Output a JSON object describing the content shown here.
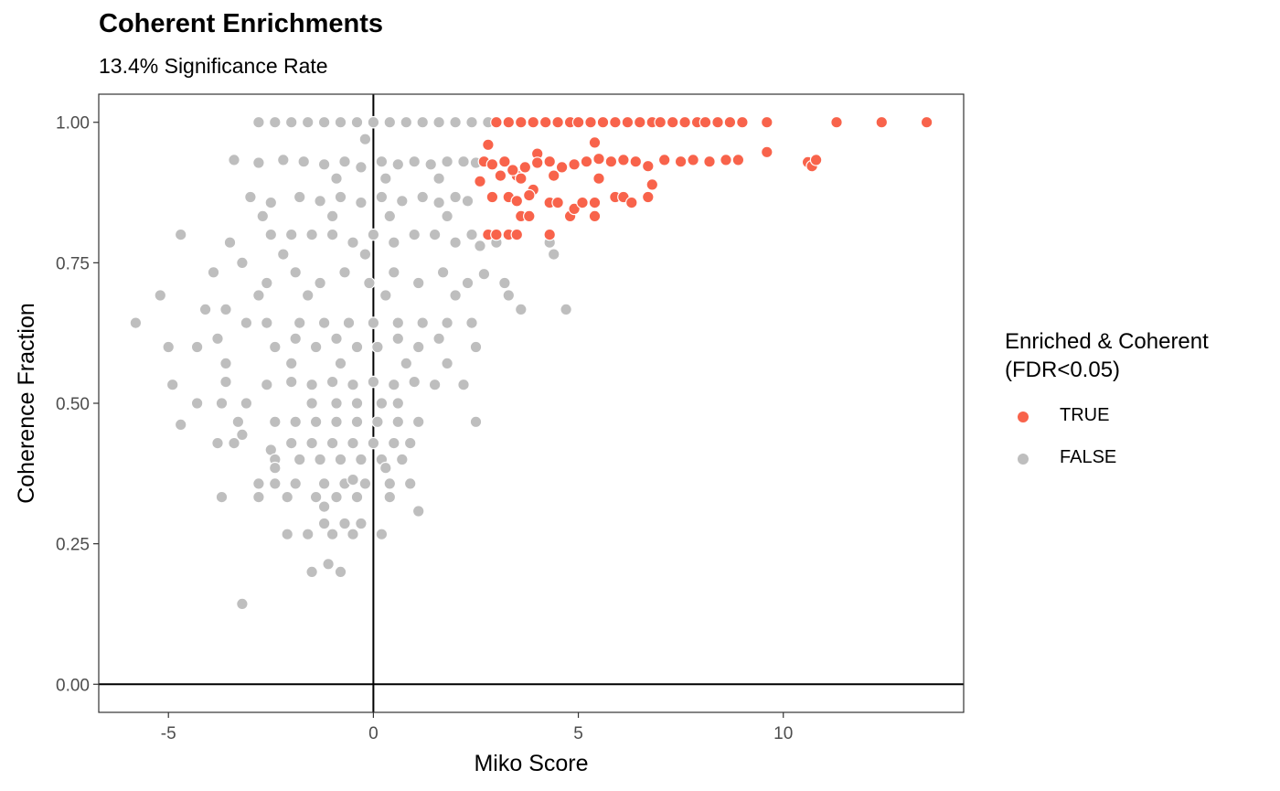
{
  "title": "Coherent Enrichments",
  "subtitle": "13.4% Significance Rate",
  "legend": {
    "title_line1": "Enriched & Coherent",
    "title_line2": "(FDR<0.05)",
    "items": [
      {
        "label": "TRUE",
        "color": "#F8634B"
      },
      {
        "label": "FALSE",
        "color": "#BEBEBE"
      }
    ]
  },
  "chart_data": {
    "type": "scatter",
    "xlabel": "Miko Score",
    "ylabel": "Coherence Fraction",
    "xlim": [
      -6.7,
      14.4
    ],
    "ylim": [
      -0.05,
      1.05
    ],
    "x_ticks": [
      -5,
      0,
      5,
      10
    ],
    "x_tick_labels": [
      "-5",
      "0",
      "5",
      "10"
    ],
    "y_ticks": [
      0,
      0.25,
      0.5,
      0.75,
      1.0
    ],
    "y_tick_labels": [
      "0.00",
      "0.25",
      "0.50",
      "0.75",
      "1.00"
    ],
    "reference_lines": {
      "x": 0,
      "y": 0
    },
    "grid": false,
    "colors": {
      "TRUE": "#F8634B",
      "FALSE": "#BEBEBE"
    },
    "series": [
      {
        "name": "TRUE",
        "color": "#F8634B",
        "points": [
          [
            3.0,
            1.0
          ],
          [
            3.3,
            1.0
          ],
          [
            3.6,
            1.0
          ],
          [
            3.9,
            1.0
          ],
          [
            4.2,
            1.0
          ],
          [
            4.5,
            1.0
          ],
          [
            4.8,
            1.0
          ],
          [
            5.0,
            1.0
          ],
          [
            5.3,
            1.0
          ],
          [
            5.6,
            1.0
          ],
          [
            5.9,
            1.0
          ],
          [
            6.2,
            1.0
          ],
          [
            6.5,
            1.0
          ],
          [
            6.8,
            1.0
          ],
          [
            7.0,
            1.0
          ],
          [
            7.3,
            1.0
          ],
          [
            7.6,
            1.0
          ],
          [
            7.9,
            1.0
          ],
          [
            8.1,
            1.0
          ],
          [
            8.4,
            1.0
          ],
          [
            8.7,
            1.0
          ],
          [
            9.0,
            1.0
          ],
          [
            9.6,
            1.0
          ],
          [
            11.3,
            1.0
          ],
          [
            12.4,
            1.0
          ],
          [
            13.5,
            1.0
          ],
          [
            2.8,
            0.96
          ],
          [
            5.4,
            0.964
          ],
          [
            9.6,
            0.947
          ],
          [
            3.5,
            0.905
          ],
          [
            4.0,
            0.944
          ],
          [
            2.7,
            0.93
          ],
          [
            2.9,
            0.925
          ],
          [
            3.2,
            0.93
          ],
          [
            3.4,
            0.915
          ],
          [
            3.7,
            0.92
          ],
          [
            4.0,
            0.928
          ],
          [
            4.3,
            0.93
          ],
          [
            4.6,
            0.92
          ],
          [
            4.9,
            0.925
          ],
          [
            5.2,
            0.93
          ],
          [
            5.5,
            0.935
          ],
          [
            5.8,
            0.93
          ],
          [
            6.1,
            0.933
          ],
          [
            6.4,
            0.93
          ],
          [
            6.7,
            0.922
          ],
          [
            7.1,
            0.933
          ],
          [
            7.5,
            0.93
          ],
          [
            7.8,
            0.933
          ],
          [
            8.2,
            0.93
          ],
          [
            8.6,
            0.933
          ],
          [
            8.9,
            0.933
          ],
          [
            10.6,
            0.929
          ],
          [
            10.7,
            0.922
          ],
          [
            10.8,
            0.933
          ],
          [
            2.6,
            0.895
          ],
          [
            3.1,
            0.905
          ],
          [
            3.6,
            0.9
          ],
          [
            3.9,
            0.88
          ],
          [
            4.4,
            0.905
          ],
          [
            3.3,
            0.867
          ],
          [
            3.5,
            0.86
          ],
          [
            3.8,
            0.87
          ],
          [
            4.3,
            0.857
          ],
          [
            4.5,
            0.857
          ],
          [
            2.9,
            0.867
          ],
          [
            3.6,
            0.833
          ],
          [
            3.8,
            0.833
          ],
          [
            4.8,
            0.833
          ],
          [
            4.9,
            0.846
          ],
          [
            5.1,
            0.857
          ],
          [
            5.4,
            0.857
          ],
          [
            5.4,
            0.833
          ],
          [
            5.5,
            0.9
          ],
          [
            5.9,
            0.867
          ],
          [
            6.1,
            0.867
          ],
          [
            6.3,
            0.857
          ],
          [
            6.7,
            0.867
          ],
          [
            6.8,
            0.889
          ],
          [
            2.8,
            0.8
          ],
          [
            3.0,
            0.8
          ],
          [
            3.3,
            0.8
          ],
          [
            3.5,
            0.8
          ],
          [
            4.3,
            0.8
          ]
        ]
      },
      {
        "name": "FALSE",
        "color": "#BEBEBE",
        "points": [
          [
            -2.8,
            1.0
          ],
          [
            -2.4,
            1.0
          ],
          [
            -2.0,
            1.0
          ],
          [
            -1.6,
            1.0
          ],
          [
            -1.2,
            1.0
          ],
          [
            -0.8,
            1.0
          ],
          [
            -0.4,
            1.0
          ],
          [
            0.0,
            1.0
          ],
          [
            0.4,
            1.0
          ],
          [
            0.8,
            1.0
          ],
          [
            1.2,
            1.0
          ],
          [
            1.6,
            1.0
          ],
          [
            2.0,
            1.0
          ],
          [
            2.4,
            1.0
          ],
          [
            2.8,
            1.0
          ],
          [
            -0.2,
            0.97
          ],
          [
            -3.4,
            0.933
          ],
          [
            -2.8,
            0.928
          ],
          [
            -2.2,
            0.933
          ],
          [
            -1.7,
            0.93
          ],
          [
            -1.2,
            0.925
          ],
          [
            -0.7,
            0.93
          ],
          [
            -0.3,
            0.92
          ],
          [
            0.2,
            0.93
          ],
          [
            0.6,
            0.925
          ],
          [
            1.0,
            0.93
          ],
          [
            1.4,
            0.925
          ],
          [
            1.8,
            0.93
          ],
          [
            2.2,
            0.93
          ],
          [
            2.5,
            0.928
          ],
          [
            -0.9,
            0.9
          ],
          [
            0.3,
            0.9
          ],
          [
            1.6,
            0.9
          ],
          [
            -3.0,
            0.867
          ],
          [
            -2.5,
            0.857
          ],
          [
            -1.8,
            0.867
          ],
          [
            -1.3,
            0.86
          ],
          [
            -0.8,
            0.867
          ],
          [
            -0.3,
            0.857
          ],
          [
            0.2,
            0.867
          ],
          [
            0.7,
            0.86
          ],
          [
            1.2,
            0.867
          ],
          [
            1.6,
            0.857
          ],
          [
            2.0,
            0.867
          ],
          [
            2.3,
            0.86
          ],
          [
            -1.0,
            0.833
          ],
          [
            0.4,
            0.833
          ],
          [
            1.8,
            0.833
          ],
          [
            -2.7,
            0.833
          ],
          [
            -4.7,
            0.8
          ],
          [
            -3.5,
            0.786
          ],
          [
            -2.5,
            0.8
          ],
          [
            -2.0,
            0.8
          ],
          [
            -1.5,
            0.8
          ],
          [
            -1.0,
            0.8
          ],
          [
            -0.5,
            0.786
          ],
          [
            0.0,
            0.8
          ],
          [
            0.5,
            0.786
          ],
          [
            1.0,
            0.8
          ],
          [
            1.5,
            0.8
          ],
          [
            2.0,
            0.786
          ],
          [
            2.4,
            0.8
          ],
          [
            2.6,
            0.78
          ],
          [
            3.0,
            0.786
          ],
          [
            4.3,
            0.786
          ],
          [
            4.4,
            0.765
          ],
          [
            -2.2,
            0.765
          ],
          [
            -0.2,
            0.765
          ],
          [
            -3.9,
            0.733
          ],
          [
            -3.2,
            0.75
          ],
          [
            -2.6,
            0.714
          ],
          [
            -1.9,
            0.733
          ],
          [
            -1.3,
            0.714
          ],
          [
            -0.7,
            0.733
          ],
          [
            -0.1,
            0.714
          ],
          [
            0.5,
            0.733
          ],
          [
            1.1,
            0.714
          ],
          [
            1.7,
            0.733
          ],
          [
            2.3,
            0.714
          ],
          [
            2.7,
            0.73
          ],
          [
            3.2,
            0.714
          ],
          [
            -5.2,
            0.692
          ],
          [
            -2.8,
            0.692
          ],
          [
            -1.6,
            0.692
          ],
          [
            0.3,
            0.692
          ],
          [
            2.0,
            0.692
          ],
          [
            3.3,
            0.692
          ],
          [
            -4.1,
            0.667
          ],
          [
            -3.6,
            0.667
          ],
          [
            -2.6,
            0.643
          ],
          [
            -1.8,
            0.643
          ],
          [
            -1.2,
            0.643
          ],
          [
            -0.6,
            0.643
          ],
          [
            0.0,
            0.643
          ],
          [
            0.6,
            0.643
          ],
          [
            1.2,
            0.643
          ],
          [
            1.8,
            0.643
          ],
          [
            2.4,
            0.643
          ],
          [
            3.6,
            0.667
          ],
          [
            4.7,
            0.667
          ],
          [
            -5.8,
            0.643
          ],
          [
            -3.1,
            0.643
          ],
          [
            -5.0,
            0.6
          ],
          [
            -4.3,
            0.6
          ],
          [
            -3.8,
            0.615
          ],
          [
            -2.4,
            0.6
          ],
          [
            -1.9,
            0.615
          ],
          [
            -1.4,
            0.6
          ],
          [
            -0.9,
            0.615
          ],
          [
            -0.4,
            0.6
          ],
          [
            0.1,
            0.6
          ],
          [
            0.6,
            0.615
          ],
          [
            1.1,
            0.6
          ],
          [
            1.6,
            0.615
          ],
          [
            2.5,
            0.6
          ],
          [
            -3.6,
            0.571
          ],
          [
            -2.0,
            0.571
          ],
          [
            -0.8,
            0.571
          ],
          [
            0.8,
            0.571
          ],
          [
            1.8,
            0.571
          ],
          [
            -4.9,
            0.533
          ],
          [
            -3.6,
            0.538
          ],
          [
            -2.6,
            0.533
          ],
          [
            -2.0,
            0.538
          ],
          [
            -1.5,
            0.533
          ],
          [
            -1.0,
            0.538
          ],
          [
            -0.5,
            0.533
          ],
          [
            0.0,
            0.538
          ],
          [
            0.5,
            0.533
          ],
          [
            1.0,
            0.538
          ],
          [
            1.5,
            0.533
          ],
          [
            2.2,
            0.533
          ],
          [
            -4.3,
            0.5
          ],
          [
            -3.7,
            0.5
          ],
          [
            -3.1,
            0.5
          ],
          [
            -1.5,
            0.5
          ],
          [
            -0.9,
            0.5
          ],
          [
            -0.4,
            0.5
          ],
          [
            0.2,
            0.5
          ],
          [
            0.6,
            0.5
          ],
          [
            -4.7,
            0.462
          ],
          [
            -3.3,
            0.467
          ],
          [
            -3.2,
            0.444
          ],
          [
            -2.4,
            0.467
          ],
          [
            -1.9,
            0.467
          ],
          [
            -1.4,
            0.467
          ],
          [
            -0.9,
            0.467
          ],
          [
            -0.4,
            0.467
          ],
          [
            0.1,
            0.467
          ],
          [
            0.6,
            0.467
          ],
          [
            1.1,
            0.467
          ],
          [
            2.5,
            0.467
          ],
          [
            -3.8,
            0.429
          ],
          [
            -3.4,
            0.429
          ],
          [
            -2.5,
            0.417
          ],
          [
            -2.0,
            0.429
          ],
          [
            -1.5,
            0.429
          ],
          [
            -1.0,
            0.429
          ],
          [
            -0.5,
            0.429
          ],
          [
            0.0,
            0.429
          ],
          [
            0.5,
            0.429
          ],
          [
            0.9,
            0.429
          ],
          [
            -2.4,
            0.4
          ],
          [
            -1.8,
            0.4
          ],
          [
            -1.3,
            0.4
          ],
          [
            -0.8,
            0.4
          ],
          [
            -0.3,
            0.4
          ],
          [
            0.2,
            0.4
          ],
          [
            0.7,
            0.4
          ],
          [
            -2.4,
            0.385
          ],
          [
            0.3,
            0.385
          ],
          [
            -2.8,
            0.357
          ],
          [
            -2.4,
            0.357
          ],
          [
            -1.9,
            0.357
          ],
          [
            -1.2,
            0.357
          ],
          [
            -0.7,
            0.357
          ],
          [
            -0.2,
            0.357
          ],
          [
            0.4,
            0.357
          ],
          [
            0.9,
            0.357
          ],
          [
            -0.5,
            0.364
          ],
          [
            -3.7,
            0.333
          ],
          [
            -2.8,
            0.333
          ],
          [
            -2.1,
            0.333
          ],
          [
            -1.4,
            0.333
          ],
          [
            -0.9,
            0.333
          ],
          [
            -0.4,
            0.333
          ],
          [
            0.4,
            0.333
          ],
          [
            -1.2,
            0.316
          ],
          [
            1.1,
            0.308
          ],
          [
            -1.2,
            0.286
          ],
          [
            -0.7,
            0.286
          ],
          [
            -0.3,
            0.286
          ],
          [
            -2.1,
            0.267
          ],
          [
            -1.6,
            0.267
          ],
          [
            -1.0,
            0.267
          ],
          [
            -0.5,
            0.267
          ],
          [
            0.2,
            0.267
          ],
          [
            -1.5,
            0.2
          ],
          [
            -1.1,
            0.214
          ],
          [
            -0.8,
            0.2
          ],
          [
            -3.2,
            0.143
          ]
        ]
      }
    ]
  }
}
